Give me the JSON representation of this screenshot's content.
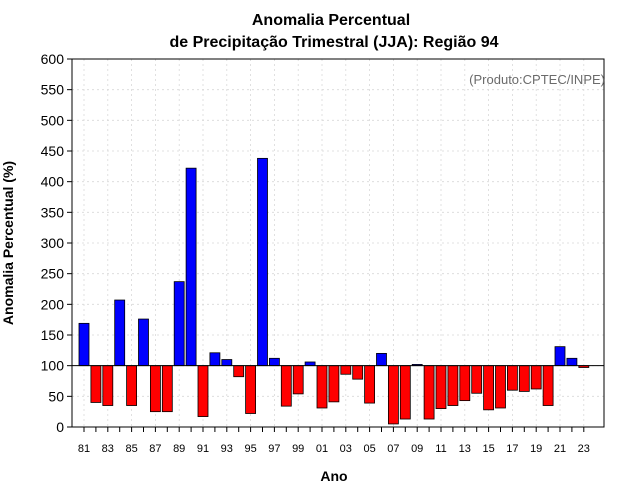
{
  "chart_data": {
    "type": "bar",
    "title_line1": "Anomalia Percentual",
    "title_line2": "de Precipitação Trimestral (JJA): Região 94",
    "annotation": "(Produto:CPTEC/INPE)",
    "xlabel": "Ano",
    "ylabel": "Anomalia Percentual (%)",
    "ylim": [
      0,
      600
    ],
    "yticks": [
      0,
      50,
      100,
      150,
      200,
      250,
      300,
      350,
      400,
      450,
      500,
      550,
      600
    ],
    "baseline": 100,
    "grid": true,
    "categories": [
      "81",
      "82",
      "83",
      "84",
      "85",
      "86",
      "87",
      "88",
      "89",
      "90",
      "91",
      "92",
      "93",
      "94",
      "95",
      "96",
      "97",
      "98",
      "99",
      "00",
      "01",
      "02",
      "03",
      "04",
      "05",
      "06",
      "07",
      "08",
      "09",
      "10",
      "11",
      "12",
      "13",
      "14",
      "15",
      "16",
      "17",
      "18",
      "19",
      "20",
      "21",
      "22",
      "23"
    ],
    "xtick_labels": [
      "81",
      "83",
      "85",
      "87",
      "89",
      "91",
      "93",
      "95",
      "97",
      "99",
      "01",
      "03",
      "05",
      "07",
      "09",
      "11",
      "13",
      "15",
      "17",
      "19",
      "21",
      "23"
    ],
    "values": [
      169,
      40,
      35,
      207,
      35,
      176,
      25,
      25,
      237,
      422,
      17,
      121,
      110,
      82,
      22,
      438,
      112,
      34,
      54,
      106,
      31,
      41,
      86,
      78,
      39,
      120,
      5,
      13,
      102,
      13,
      30,
      35,
      43,
      55,
      28,
      31,
      60,
      58,
      62,
      35,
      131,
      112,
      97
    ],
    "colors": {
      "above": "#0000ff",
      "below": "#ff0000"
    }
  }
}
